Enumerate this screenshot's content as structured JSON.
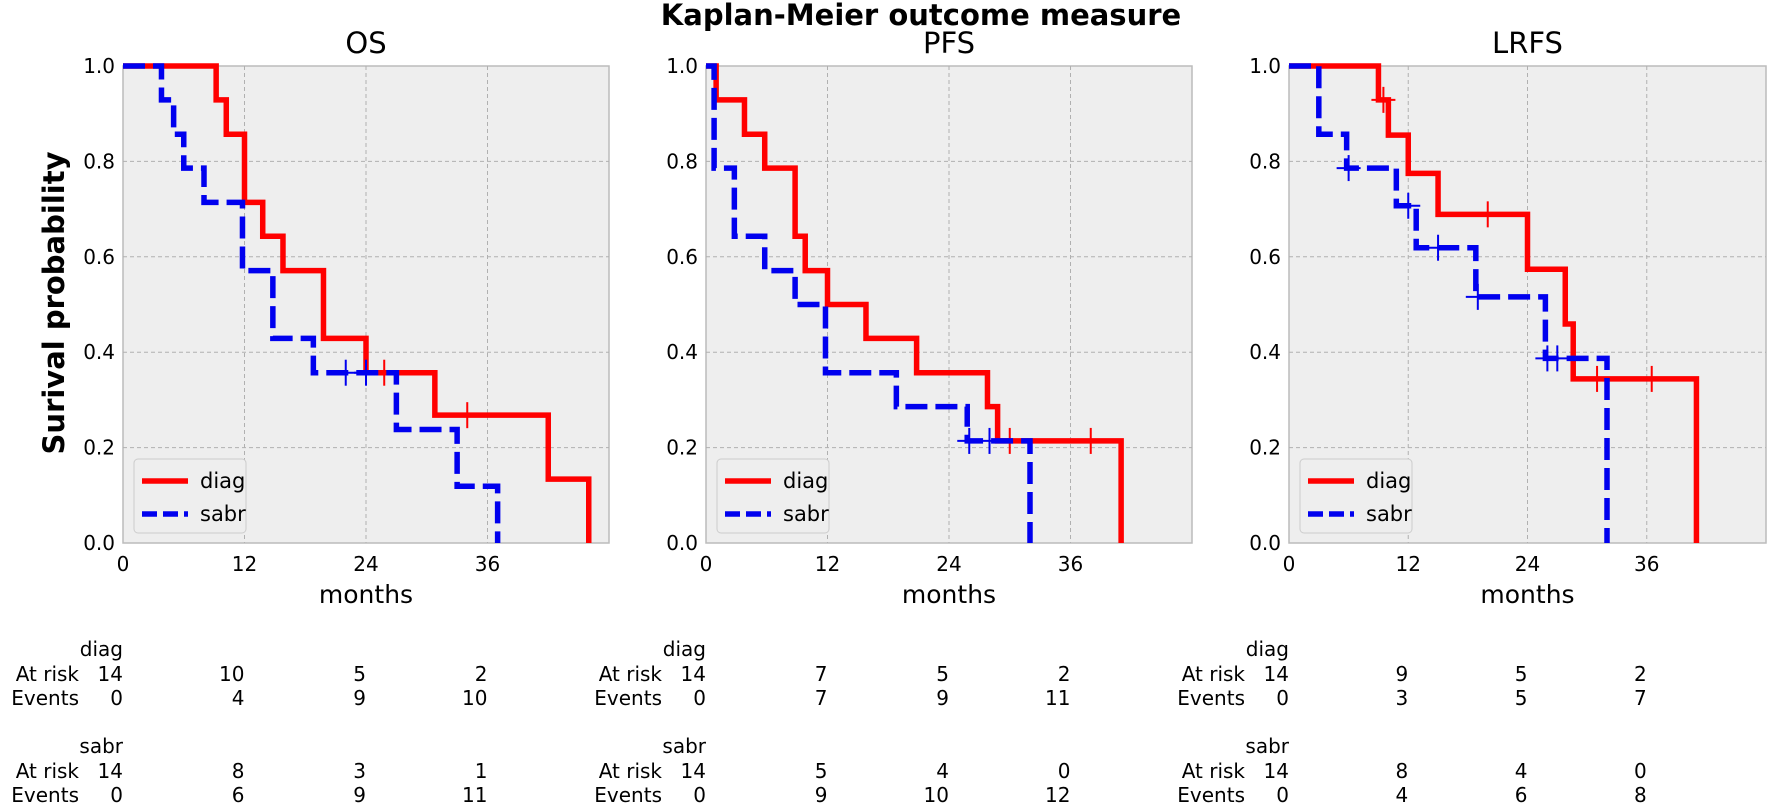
{
  "figure_title": "Kaplan-Meier outcome measure",
  "ylabel": "Surival probability",
  "colors": {
    "diag": "#ff0000",
    "sabr": "#0000ee",
    "panel_bg": "#eeeeee",
    "grid": "#b0b0b0"
  },
  "chart_data": [
    {
      "type": "line",
      "title": "OS",
      "xlabel": "months",
      "ylabel": "Surival probability",
      "xlim": [
        0,
        48
      ],
      "ylim": [
        0,
        1
      ],
      "xticks": [
        0,
        12,
        24,
        36
      ],
      "yticks": [
        "0.0",
        "0.2",
        "0.4",
        "0.6",
        "0.8",
        "1.0"
      ],
      "grid": true,
      "legend": "lower-left",
      "series": [
        {
          "name": "diag",
          "style": "solid",
          "steps": [
            [
              0,
              1.0
            ],
            [
              9.2,
              0.929
            ],
            [
              10.2,
              0.857
            ],
            [
              12,
              0.714
            ],
            [
              13.8,
              0.643
            ],
            [
              15.8,
              0.571
            ],
            [
              19.8,
              0.429
            ],
            [
              24,
              0.357
            ],
            [
              30.8,
              0.268
            ],
            [
              42,
              0.134
            ],
            [
              46,
              0.0
            ]
          ],
          "censored": [
            [
              25.8,
              0.357
            ],
            [
              34,
              0.268
            ]
          ]
        },
        {
          "name": "sabr",
          "style": "dashed",
          "steps": [
            [
              0,
              1.0
            ],
            [
              3.8,
              0.929
            ],
            [
              5,
              0.857
            ],
            [
              6,
              0.786
            ],
            [
              8,
              0.714
            ],
            [
              11.8,
              0.571
            ],
            [
              14.8,
              0.429
            ],
            [
              18.8,
              0.357
            ],
            [
              27,
              0.238
            ],
            [
              33,
              0.119
            ],
            [
              37,
              0.0
            ]
          ],
          "censored": [
            [
              22,
              0.357
            ],
            [
              24,
              0.357
            ]
          ]
        }
      ],
      "risk_table": {
        "x": [
          0,
          12,
          24,
          36
        ],
        "diag": {
          "at_risk": [
            "14",
            "10",
            "5",
            "2"
          ],
          "events": [
            "0",
            "4",
            "9",
            "10"
          ]
        },
        "sabr": {
          "at_risk": [
            "14",
            "8",
            "3",
            "1"
          ],
          "events": [
            "0",
            "6",
            "9",
            "11"
          ]
        }
      }
    },
    {
      "type": "line",
      "title": "PFS",
      "xlabel": "months",
      "ylabel": "",
      "xlim": [
        0,
        48
      ],
      "ylim": [
        0,
        1
      ],
      "xticks": [
        0,
        12,
        24,
        36
      ],
      "yticks": [
        "0.0",
        "0.2",
        "0.4",
        "0.6",
        "0.8",
        "1.0"
      ],
      "grid": true,
      "legend": "lower-left",
      "series": [
        {
          "name": "diag",
          "style": "solid",
          "steps": [
            [
              0,
              1.0
            ],
            [
              1,
              0.929
            ],
            [
              3.8,
              0.857
            ],
            [
              5.8,
              0.786
            ],
            [
              8.8,
              0.643
            ],
            [
              9.8,
              0.571
            ],
            [
              12,
              0.5
            ],
            [
              15.8,
              0.429
            ],
            [
              20.8,
              0.357
            ],
            [
              27.8,
              0.286
            ],
            [
              28.8,
              0.214
            ],
            [
              41,
              0.0
            ]
          ],
          "censored": [
            [
              30,
              0.214
            ],
            [
              38,
              0.214
            ]
          ]
        },
        {
          "name": "sabr",
          "style": "dashed",
          "steps": [
            [
              0,
              1.0
            ],
            [
              0.8,
              0.786
            ],
            [
              2.8,
              0.643
            ],
            [
              5.8,
              0.571
            ],
            [
              8.8,
              0.5
            ],
            [
              11.8,
              0.357
            ],
            [
              18.8,
              0.286
            ],
            [
              25.8,
              0.214
            ],
            [
              32,
              0.0
            ]
          ],
          "censored": [
            [
              26,
              0.214
            ],
            [
              28,
              0.214
            ]
          ]
        }
      ],
      "risk_table": {
        "x": [
          0,
          12,
          24,
          36
        ],
        "diag": {
          "at_risk": [
            "14",
            "7",
            "5",
            "2"
          ],
          "events": [
            "0",
            "7",
            "9",
            "11"
          ]
        },
        "sabr": {
          "at_risk": [
            "14",
            "5",
            "4",
            "0"
          ],
          "events": [
            "0",
            "9",
            "10",
            "12"
          ]
        }
      }
    },
    {
      "type": "line",
      "title": "LRFS",
      "xlabel": "months",
      "ylabel": "",
      "xlim": [
        0,
        48
      ],
      "ylim": [
        0,
        1
      ],
      "xticks": [
        0,
        12,
        24,
        36
      ],
      "yticks": [
        "0.0",
        "0.2",
        "0.4",
        "0.6",
        "0.8",
        "1.0"
      ],
      "grid": true,
      "legend": "lower-left",
      "series": [
        {
          "name": "diag",
          "style": "solid",
          "steps": [
            [
              0,
              1.0
            ],
            [
              9,
              0.929
            ],
            [
              10,
              0.855
            ],
            [
              12,
              0.775
            ],
            [
              15,
              0.689
            ],
            [
              24,
              0.574
            ],
            [
              27.8,
              0.459
            ],
            [
              28.6,
              0.344
            ],
            [
              41,
              0.0
            ]
          ],
          "censored": [
            [
              9.5,
              0.929
            ],
            [
              20,
              0.689
            ],
            [
              31,
              0.344
            ],
            [
              36.5,
              0.344
            ]
          ]
        },
        {
          "name": "sabr",
          "style": "dashed",
          "steps": [
            [
              0,
              1.0
            ],
            [
              3,
              0.857
            ],
            [
              5.8,
              0.786
            ],
            [
              10.8,
              0.707
            ],
            [
              12.8,
              0.619
            ],
            [
              18.8,
              0.516
            ],
            [
              25.8,
              0.387
            ],
            [
              32,
              0.0
            ]
          ],
          "censored": [
            [
              6,
              0.786
            ],
            [
              12,
              0.707
            ],
            [
              15,
              0.619
            ],
            [
              19,
              0.516
            ],
            [
              26,
              0.387
            ],
            [
              27,
              0.387
            ]
          ]
        }
      ],
      "risk_table": {
        "x": [
          0,
          12,
          24,
          36
        ],
        "diag": {
          "at_risk": [
            "14",
            "9",
            "5",
            "2"
          ],
          "events": [
            "0",
            "3",
            "5",
            "7"
          ]
        },
        "sabr": {
          "at_risk": [
            "14",
            "8",
            "4",
            "0"
          ],
          "events": [
            "0",
            "4",
            "6",
            "8"
          ]
        }
      }
    }
  ],
  "risk_labels": {
    "at_risk": "At risk",
    "events": "Events"
  }
}
